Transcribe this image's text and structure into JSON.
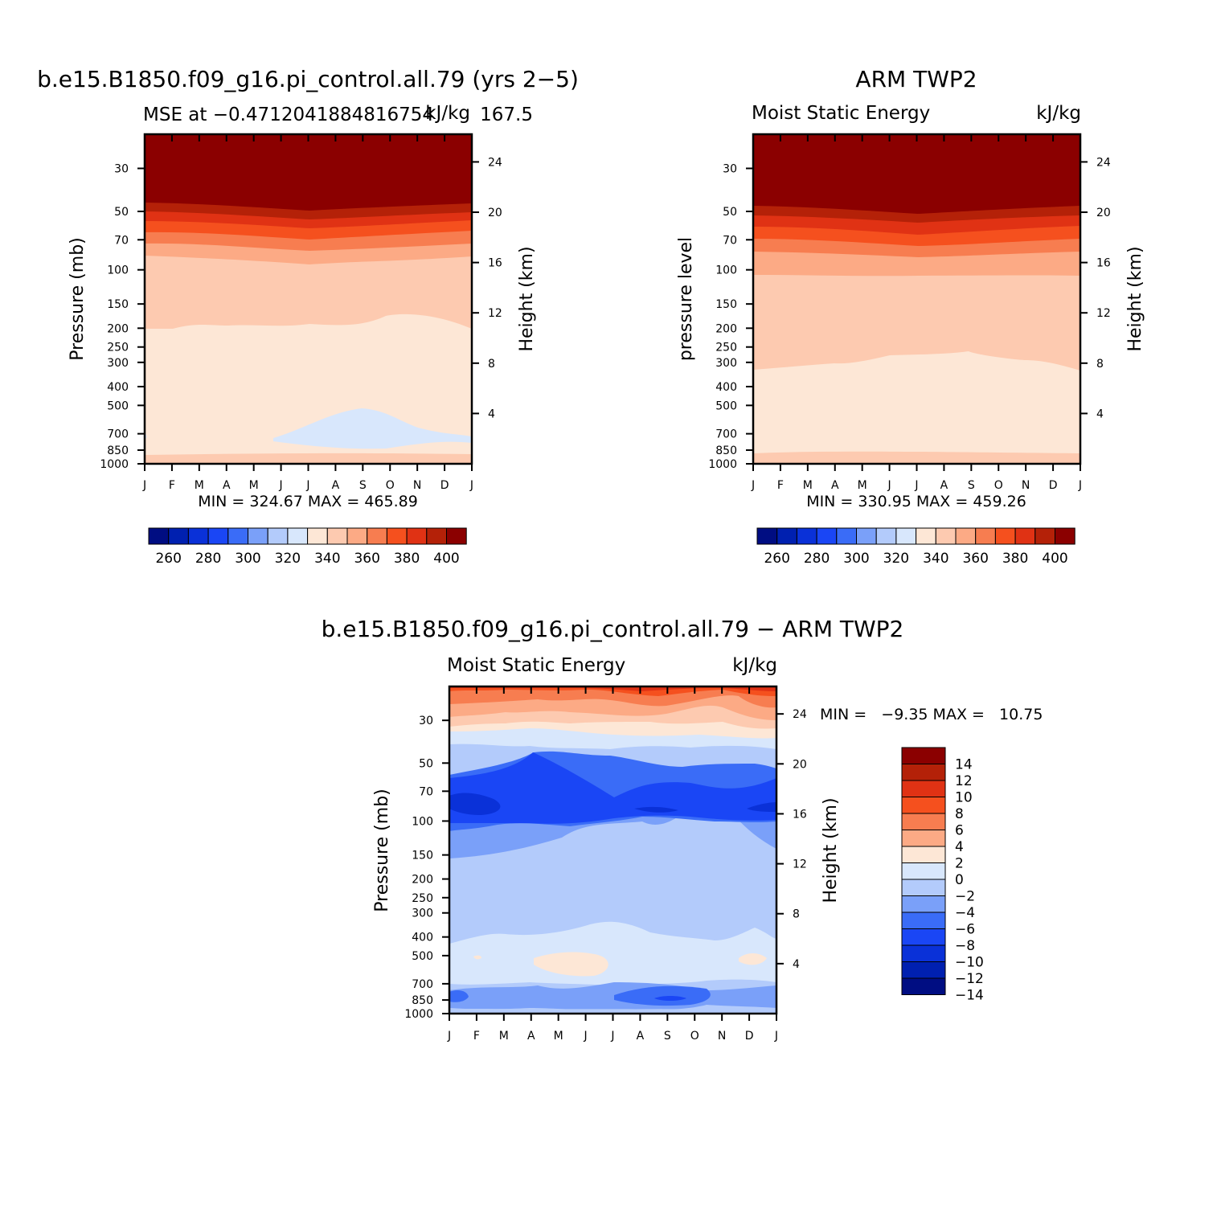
{
  "colors": {
    "palette": [
      "#000d82",
      "#0020b0",
      "#0a31d8",
      "#1a46f5",
      "#3a6cf7",
      "#7aa0f9",
      "#b3cbfb",
      "#d8e7fc",
      "#fde7d6",
      "#fdcab0",
      "#fcaa85",
      "#f77d50",
      "#f5501e",
      "#e03214",
      "#b42108",
      "#8b0000"
    ],
    "diff_palette": [
      "#000d82",
      "#0020b0",
      "#0a31d8",
      "#1a46f5",
      "#3a6cf7",
      "#7aa0f9",
      "#b3cbfb",
      "#d8e7fc",
      "#fde7d6",
      "#fcaa85",
      "#f77d50",
      "#f5501e",
      "#e03214",
      "#b42108",
      "#8b0000"
    ]
  },
  "months": [
    "J",
    "F",
    "M",
    "A",
    "M",
    "J",
    "J",
    "A",
    "S",
    "O",
    "N",
    "D",
    "J"
  ],
  "pressure_ticks": [
    "30",
    "50",
    "70",
    "100",
    "150",
    "200",
    "250",
    "300",
    "400",
    "500",
    "700",
    "850",
    "1000"
  ],
  "height_ticks": [
    "24",
    "20",
    "16",
    "12",
    "8",
    "4"
  ],
  "colorbar_labels": [
    "260",
    "280",
    "300",
    "320",
    "340",
    "360",
    "380",
    "400"
  ],
  "diff_colorbar_labels": [
    "14",
    "12",
    "10",
    "8",
    "6",
    "4",
    "2",
    "0",
    "−2",
    "−4",
    "−6",
    "−8",
    "−10",
    "−12",
    "−14"
  ],
  "panel_model": {
    "title": "b.e15.B1850.f09_g16.pi_control.all.79 (yrs 2−5)",
    "subtitle_left": "MSE at −0.4712041884816754",
    "subtitle_right": "kJ/kg",
    "subtitle_extra": "167.5",
    "ylabel_left": "Pressure (mb)",
    "ylabel_right": "Height (km)",
    "stats": "MIN = 324.67 MAX = 465.89"
  },
  "panel_obs": {
    "title": "ARM TWP2",
    "subtitle_left": "Moist Static Energy",
    "subtitle_right": "kJ/kg",
    "ylabel_left": "pressure level",
    "ylabel_right": "Height (km)",
    "stats": "MIN = 330.95 MAX = 459.26"
  },
  "panel_diff": {
    "title": "b.e15.B1850.f09_g16.pi_control.all.79 − ARM TWP2",
    "subtitle_left": "Moist Static Energy",
    "subtitle_right": "kJ/kg",
    "ylabel_left": "Pressure (mb)",
    "ylabel_right": "Height (km)",
    "stats": "MIN =   −9.35 MAX =   10.75"
  },
  "chart_data": [
    {
      "type": "heatmap",
      "title": "b.e15.B1850.f09_g16.pi_control.all.79 (yrs 2−5)",
      "variable": "MSE",
      "units": "kJ/kg",
      "x": [
        "J",
        "F",
        "M",
        "A",
        "M",
        "J",
        "J",
        "A",
        "S",
        "O",
        "N",
        "D",
        "J"
      ],
      "y_pressure_mb": [
        30,
        50,
        70,
        100,
        150,
        200,
        250,
        300,
        400,
        500,
        700,
        850,
        1000
      ],
      "ylim_pressure": [
        1000,
        20
      ],
      "contour_levels": [
        260,
        270,
        280,
        290,
        300,
        310,
        320,
        330,
        340,
        350,
        360,
        370,
        380,
        390,
        400
      ],
      "min": 324.67,
      "max": 465.89
    },
    {
      "type": "heatmap",
      "title": "ARM TWP2",
      "variable": "Moist Static Energy",
      "units": "kJ/kg",
      "x": [
        "J",
        "F",
        "M",
        "A",
        "M",
        "J",
        "J",
        "A",
        "S",
        "O",
        "N",
        "D",
        "J"
      ],
      "y_pressure_mb": [
        30,
        50,
        70,
        100,
        150,
        200,
        250,
        300,
        400,
        500,
        700,
        850,
        1000
      ],
      "ylim_pressure": [
        1000,
        20
      ],
      "contour_levels": [
        260,
        270,
        280,
        290,
        300,
        310,
        320,
        330,
        340,
        350,
        360,
        370,
        380,
        390,
        400
      ],
      "min": 330.95,
      "max": 459.26
    },
    {
      "type": "heatmap",
      "title": "b.e15.B1850.f09_g16.pi_control.all.79 − ARM TWP2",
      "variable": "Moist Static Energy",
      "units": "kJ/kg",
      "x": [
        "J",
        "F",
        "M",
        "A",
        "M",
        "J",
        "J",
        "A",
        "S",
        "O",
        "N",
        "D",
        "J"
      ],
      "y_pressure_mb": [
        30,
        50,
        70,
        100,
        150,
        200,
        250,
        300,
        400,
        500,
        700,
        850,
        1000
      ],
      "ylim_pressure": [
        1000,
        20
      ],
      "contour_levels": [
        -14,
        -12,
        -10,
        -8,
        -6,
        -4,
        -2,
        0,
        2,
        4,
        6,
        8,
        10,
        12,
        14
      ],
      "min": -9.35,
      "max": 10.75
    }
  ]
}
